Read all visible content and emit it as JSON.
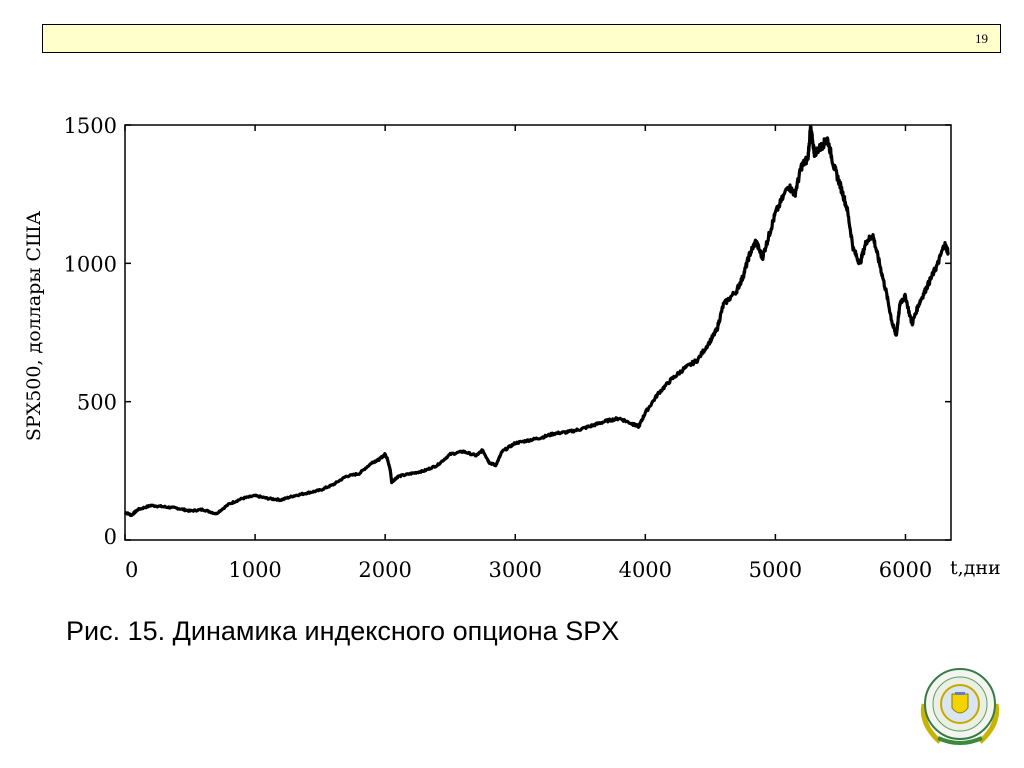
{
  "header": {
    "page_number": "19"
  },
  "caption": "Рис. 15. Динамика индексного опциона SPX",
  "chart_data": {
    "type": "line",
    "title": "",
    "xlabel": "t,дни",
    "ylabel": "SPX500, доллары США",
    "xlim": [
      0,
      6350
    ],
    "ylim": [
      0,
      1500
    ],
    "x_ticks": [
      0,
      1000,
      2000,
      3000,
      4000,
      5000,
      6000
    ],
    "x_tick_labels": [
      "0",
      "1000",
      "2000",
      "3000",
      "4000",
      "5000",
      "6000"
    ],
    "y_ticks": [
      0,
      500,
      1000,
      1500
    ],
    "y_tick_labels": [
      "0",
      "500",
      "1000",
      "1500"
    ],
    "grid": false,
    "series": [
      {
        "x": [
          0,
          50,
          100,
          200,
          300,
          400,
          500,
          600,
          700,
          800,
          900,
          1000,
          1100,
          1200,
          1300,
          1400,
          1500,
          1600,
          1700,
          1800,
          1900,
          1950,
          2000,
          2020,
          2040,
          2050,
          2100,
          2200,
          2300,
          2400,
          2500,
          2600,
          2700,
          2750,
          2800,
          2850,
          2900,
          3000,
          3100,
          3200,
          3300,
          3400,
          3500,
          3600,
          3700,
          3800,
          3900,
          3950,
          4000,
          4100,
          4200,
          4300,
          4400,
          4500,
          4550,
          4600,
          4700,
          4750,
          4800,
          4850,
          4900,
          4950,
          5000,
          5100,
          5150,
          5200,
          5250,
          5270,
          5300,
          5350,
          5400,
          5450,
          5500,
          5550,
          5600,
          5650,
          5700,
          5750,
          5800,
          5850,
          5900,
          5930,
          5960,
          6000,
          6050,
          6100,
          6150,
          6200,
          6250,
          6300,
          6330
        ],
        "y": [
          100,
          90,
          110,
          125,
          120,
          115,
          105,
          110,
          95,
          130,
          150,
          160,
          150,
          145,
          160,
          170,
          180,
          200,
          230,
          240,
          280,
          290,
          310,
          290,
          250,
          210,
          230,
          240,
          250,
          270,
          310,
          320,
          305,
          325,
          280,
          270,
          320,
          350,
          360,
          370,
          385,
          390,
          400,
          415,
          430,
          440,
          420,
          410,
          460,
          530,
          580,
          620,
          650,
          720,
          760,
          850,
          900,
          950,
          1030,
          1080,
          1020,
          1100,
          1180,
          1280,
          1250,
          1350,
          1380,
          1490,
          1400,
          1420,
          1450,
          1350,
          1280,
          1200,
          1050,
          1000,
          1080,
          1100,
          1000,
          900,
          780,
          740,
          860,
          880,
          780,
          850,
          900,
          950,
          1000,
          1070,
          1040
        ]
      }
    ]
  }
}
